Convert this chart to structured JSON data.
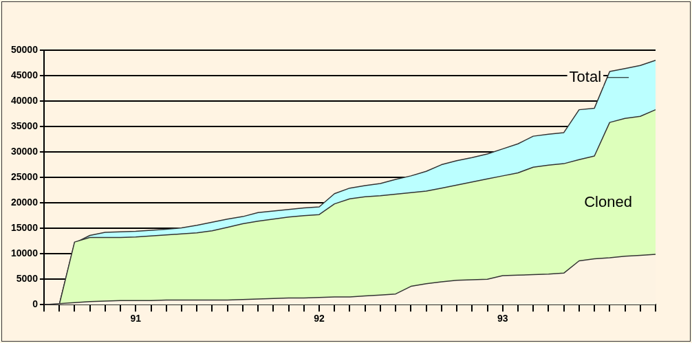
{
  "chart_data": {
    "type": "area",
    "categories": [
      null,
      null,
      null,
      null,
      null,
      null,
      "91",
      null,
      null,
      null,
      null,
      null,
      null,
      null,
      null,
      null,
      null,
      null,
      "92",
      null,
      null,
      null,
      null,
      null,
      null,
      null,
      null,
      null,
      null,
      null,
      "93",
      null,
      null,
      null,
      null,
      null,
      null,
      null,
      null,
      null,
      null
    ],
    "series": [
      {
        "name": "Total",
        "color": "#bbffff",
        "values": [
          0,
          0,
          12100,
          13600,
          14200,
          14300,
          14400,
          14600,
          14800,
          15100,
          15600,
          16200,
          16800,
          17300,
          18100,
          18400,
          18700,
          19000,
          19200,
          21800,
          22900,
          23400,
          23800,
          24600,
          25300,
          26200,
          27500,
          28300,
          28900,
          29600,
          30600,
          31600,
          33100,
          33500,
          33800,
          38300,
          38600,
          45800,
          46400,
          47000,
          48000
        ]
      },
      {
        "name": "Cloned",
        "color": "#ddffbb",
        "values": [
          0,
          0,
          12300,
          13200,
          13200,
          13200,
          13300,
          13500,
          13700,
          13900,
          14100,
          14500,
          15200,
          15900,
          16400,
          16800,
          17200,
          17500,
          17700,
          19800,
          20800,
          21200,
          21400,
          21700,
          22000,
          22300,
          22900,
          23500,
          24100,
          24700,
          25300,
          25900,
          27000,
          27400,
          27700,
          28500,
          29200,
          35800,
          36600,
          37000,
          38300
        ]
      },
      {
        "color": "#fdf3e3",
        "values": [
          0,
          200,
          400,
          600,
          700,
          800,
          800,
          800,
          900,
          900,
          900,
          900,
          900,
          1000,
          1100,
          1200,
          1300,
          1300,
          1400,
          1500,
          1500,
          1700,
          1900,
          2100,
          3600,
          4100,
          4500,
          4800,
          4900,
          5000,
          5700,
          5800,
          5900,
          6000,
          6200,
          8600,
          9000,
          9200,
          9500,
          9700,
          9900
        ]
      }
    ],
    "ylim": [
      0,
      50000
    ],
    "yticks": [
      0,
      5000,
      10000,
      15000,
      20000,
      25000,
      30000,
      35000,
      40000,
      45000,
      50000
    ],
    "grid": "y",
    "legend": false
  }
}
